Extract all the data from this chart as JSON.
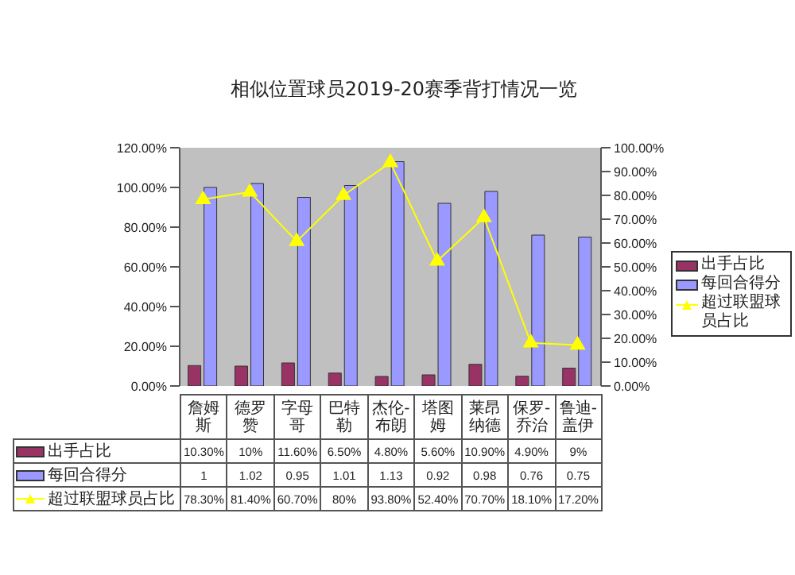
{
  "chart_data": {
    "type": "bar",
    "title": "相似位置球员2019-20赛季背打情况一览",
    "categories": [
      "詹姆斯",
      "德罗赞",
      "字母哥",
      "巴特勒",
      "杰伦-布朗",
      "塔图姆",
      "莱昂纳德",
      "保罗-乔治",
      "鲁迪-盖伊"
    ],
    "series": [
      {
        "name": "出手占比",
        "color": "#993366",
        "values": [
          0.103,
          0.1,
          0.116,
          0.065,
          0.048,
          0.056,
          0.109,
          0.049,
          0.09
        ],
        "value_labels": [
          "10.30%",
          "10%",
          "11.60%",
          "6.50%",
          "4.80%",
          "5.60%",
          "10.90%",
          "4.90%",
          "9%"
        ]
      },
      {
        "name": "每回合得分",
        "color": "#9999ff",
        "values": [
          1,
          1.02,
          0.95,
          1.01,
          1.13,
          0.92,
          0.98,
          0.76,
          0.75
        ],
        "value_labels": [
          "1",
          "1.02",
          "0.95",
          "1.01",
          "1.13",
          "0.92",
          "0.98",
          "0.76",
          "0.75"
        ]
      },
      {
        "name": "超过联盟球员占比",
        "type": "line",
        "axis": "y2",
        "color": "#ffff00",
        "marker": "triangle",
        "values": [
          0.783,
          0.814,
          0.607,
          0.8,
          0.938,
          0.524,
          0.707,
          0.181,
          0.172
        ],
        "value_labels": [
          "78.30%",
          "81.40%",
          "60.70%",
          "80%",
          "93.80%",
          "52.40%",
          "70.70%",
          "18.10%",
          "17.20%"
        ]
      }
    ],
    "ylim": [
      0,
      1.2
    ],
    "yticks": [
      {
        "value": 0,
        "label": "0.00%"
      },
      {
        "value": 0.2,
        "label": "20.00%"
      },
      {
        "value": 0.4,
        "label": "40.00%"
      },
      {
        "value": 0.6,
        "label": "60.00%"
      },
      {
        "value": 0.8,
        "label": "80.00%"
      },
      {
        "value": 1,
        "label": "100.00%"
      },
      {
        "value": 1.2,
        "label": "120.00%"
      }
    ],
    "y2lim": [
      0,
      1
    ],
    "y2ticks": [
      {
        "value": 0,
        "label": "0.00%"
      },
      {
        "value": 0.1,
        "label": "10.00%"
      },
      {
        "value": 0.2,
        "label": "20.00%"
      },
      {
        "value": 0.3,
        "label": "30.00%"
      },
      {
        "value": 0.4,
        "label": "40.00%"
      },
      {
        "value": 0.5,
        "label": "50.00%"
      },
      {
        "value": 0.6,
        "label": "60.00%"
      },
      {
        "value": 0.7,
        "label": "70.00%"
      },
      {
        "value": 0.8,
        "label": "80.00%"
      },
      {
        "value": 0.9,
        "label": "90.00%"
      },
      {
        "value": 1,
        "label": "100.00%"
      }
    ],
    "grid": false,
    "legend": "right"
  }
}
